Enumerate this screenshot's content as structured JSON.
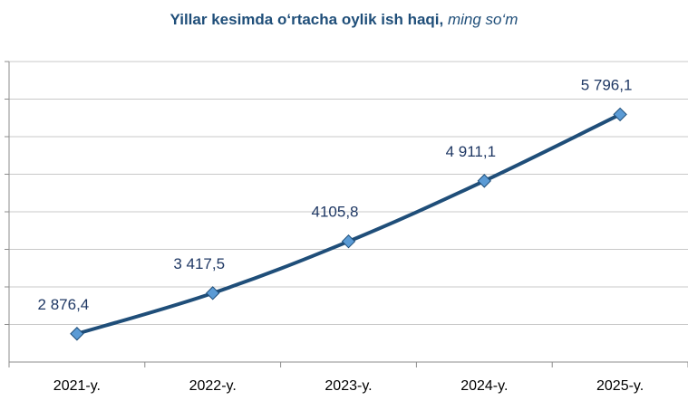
{
  "chart_data": {
    "type": "line",
    "title": "Yillar kesimda o‘rtacha oylik ish haqi,",
    "unit": "ming so‘m",
    "categories": [
      "2021-y.",
      "2022-y.",
      "2023-y.",
      "2024-y.",
      "2025-y."
    ],
    "values": [
      2876.4,
      3417.5,
      4105.8,
      4911.1,
      5796.1
    ],
    "data_labels": [
      "2 876,4",
      "3 417,5",
      "4105,8",
      "4 911,1",
      "5 796,1"
    ],
    "ylim": [
      2500,
      6500
    ],
    "y_gridlines": 8,
    "grid": true,
    "legend": "none",
    "line_color": "#1f4e79",
    "marker_fill": "#5b9bd5"
  }
}
